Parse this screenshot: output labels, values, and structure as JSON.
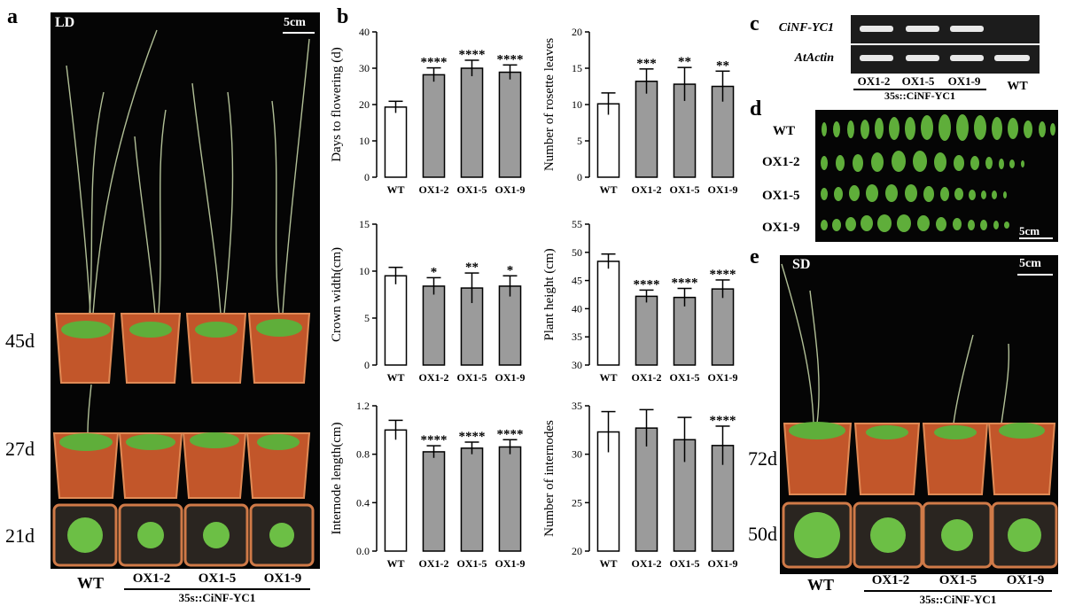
{
  "panel_letters": {
    "a": "a",
    "b": "b",
    "c": "c",
    "d": "d",
    "e": "e"
  },
  "panel_a": {
    "condition": "LD",
    "scale": "5cm",
    "days": [
      "45d",
      "27d",
      "21d"
    ],
    "genotypes": [
      "WT",
      "OX1-2",
      "OX1-5",
      "OX1-9"
    ],
    "construct": "35s::CiNF-YC1"
  },
  "panel_c": {
    "genes": [
      "CiNF-YC1",
      "AtActin"
    ],
    "lanes": [
      "OX1-2",
      "OX1-5",
      "OX1-9",
      "WT"
    ],
    "construct": "35s::CiNF-YC1"
  },
  "panel_d": {
    "rows": [
      "WT",
      "OX1-2",
      "OX1-5",
      "OX1-9"
    ],
    "scale": "5cm"
  },
  "panel_e": {
    "condition": "SD",
    "scale": "5cm",
    "days": [
      "72d",
      "50d"
    ],
    "genotypes": [
      "WT",
      "OX1-2",
      "OX1-5",
      "OX1-9"
    ],
    "construct": "35s::CiNF-YC1"
  },
  "colors": {
    "wt_bar": "#ffffff",
    "ox_bar": "#9b9b9b",
    "leaf": "#5fae3a",
    "pot": "#c2562a",
    "photo_bg": "#050505"
  },
  "chart_data": [
    {
      "type": "bar",
      "ylabel": "Days to flowering (d)",
      "categories": [
        "WT",
        "OX1-2",
        "OX1-5",
        "OX1-9"
      ],
      "values": [
        19.3,
        28.2,
        30.0,
        28.9
      ],
      "errors": [
        1.6,
        1.9,
        2.2,
        2.0
      ],
      "significance": [
        "",
        "****",
        "****",
        "****"
      ],
      "ylim": [
        0,
        40
      ],
      "yticks": [
        0,
        10,
        20,
        30,
        40
      ]
    },
    {
      "type": "bar",
      "ylabel": "Number of  rosette leaves",
      "categories": [
        "WT",
        "OX1-2",
        "OX1-5",
        "OX1-9"
      ],
      "values": [
        10.1,
        13.2,
        12.8,
        12.5
      ],
      "errors": [
        1.5,
        1.7,
        2.3,
        2.1
      ],
      "significance": [
        "",
        "***",
        "**",
        "**"
      ],
      "ylim": [
        0,
        20
      ],
      "yticks": [
        0,
        5,
        10,
        15,
        20
      ]
    },
    {
      "type": "bar",
      "ylabel": "Crown width(cm)",
      "categories": [
        "WT",
        "OX1-2",
        "OX1-5",
        "OX1-9"
      ],
      "values": [
        9.5,
        8.4,
        8.2,
        8.4
      ],
      "errors": [
        0.9,
        0.9,
        1.6,
        1.1
      ],
      "significance": [
        "",
        "*",
        "**",
        "*"
      ],
      "ylim": [
        0,
        15
      ],
      "yticks": [
        0,
        5,
        10,
        15
      ]
    },
    {
      "type": "bar",
      "ylabel": "Plant height (cm)",
      "categories": [
        "WT",
        "OX1-2",
        "OX1-5",
        "OX1-9"
      ],
      "values": [
        48.4,
        42.2,
        42.0,
        43.5
      ],
      "errors": [
        1.3,
        1.1,
        1.6,
        1.6
      ],
      "significance": [
        "",
        "****",
        "****",
        "****"
      ],
      "ylim": [
        30,
        55
      ],
      "yticks": [
        30,
        35,
        40,
        45,
        50,
        55
      ]
    },
    {
      "type": "bar",
      "ylabel": "Internode length(cm)",
      "categories": [
        "WT",
        "OX1-2",
        "OX1-5",
        "OX1-9"
      ],
      "values": [
        1.0,
        0.82,
        0.85,
        0.86
      ],
      "errors": [
        0.08,
        0.05,
        0.05,
        0.06
      ],
      "significance": [
        "",
        "****",
        "****",
        "****"
      ],
      "ylim": [
        0,
        1.2
      ],
      "yticks": [
        "0.0",
        "0.4",
        "0.8",
        "1.2"
      ]
    },
    {
      "type": "bar",
      "ylabel": "Number of internodes",
      "categories": [
        "WT",
        "OX1-2",
        "OX1-5",
        "OX1-9"
      ],
      "values": [
        32.3,
        32.7,
        31.5,
        30.9
      ],
      "errors": [
        2.1,
        1.9,
        2.3,
        2.0
      ],
      "significance": [
        "",
        "",
        "",
        "****"
      ],
      "ylim": [
        20,
        35
      ],
      "yticks": [
        20,
        25,
        30,
        35
      ]
    }
  ]
}
